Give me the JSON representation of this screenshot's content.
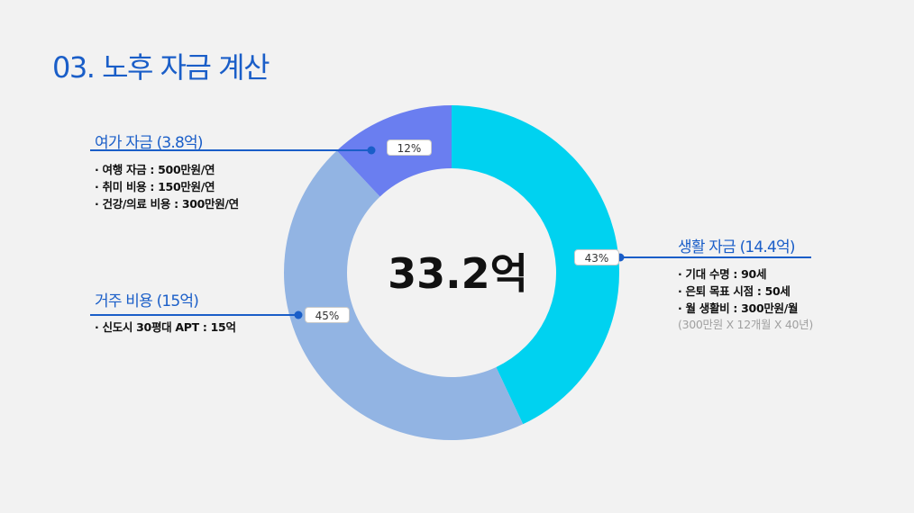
{
  "slide": {
    "title": "03. 노후 자금 계산"
  },
  "chart_data": {
    "type": "pie",
    "center_label": "33.2억",
    "slices": [
      {
        "label": "생활 자금 (14.4억)",
        "value": 43,
        "value_label": "43%",
        "color": "#00d2f0"
      },
      {
        "label": "거주 비용 (15억)",
        "value": 45,
        "value_label": "45%",
        "color": "#92b4e3"
      },
      {
        "label": "여가 자금 (3.8억)",
        "value": 12,
        "value_label": "12%",
        "color": "#6a7ef0"
      }
    ]
  },
  "callouts": {
    "living": {
      "heading": "생활 자금 (14.4억)",
      "items": [
        "· 기대 수명 : 90세",
        "· 은퇴 목표 시점 : 50세",
        "· 월 생활비 : 300만원/월"
      ],
      "note": "(300만원 X 12개월 X 40년)"
    },
    "housing": {
      "heading": "거주 비용 (15억)",
      "items": [
        "· 신도시 30평대 APT : 15억"
      ]
    },
    "leisure": {
      "heading": "여가 자금 (3.8억)",
      "items": [
        "· 여행 자금 : 500만원/연",
        "· 취미 비용 : 150만원/연",
        "· 건강/의료 비용 : 300만원/연"
      ]
    }
  },
  "colors": {
    "accent": "#1a5ec8",
    "connector_dot": "#1a5ec8"
  }
}
